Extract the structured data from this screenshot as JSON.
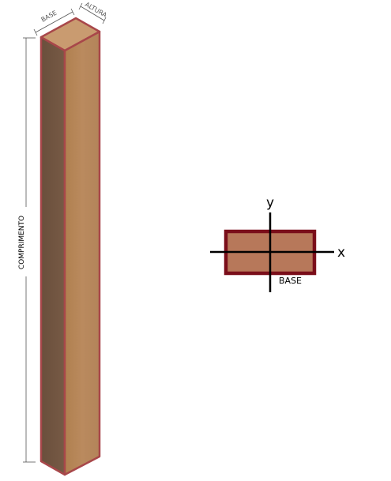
{
  "beam": {
    "base_label": "BASE",
    "altura_label": "ALTURA",
    "comprimento_label": "COMPRIMENTO"
  },
  "section": {
    "y_label": "y",
    "x_label": "x",
    "base_label": "BASE"
  },
  "colors": {
    "outline": "#7a0e1a",
    "beam_edge": "#a8474a",
    "front_face": "#b88559",
    "side_face": "#6f5340",
    "top_face": "#c89a6e",
    "section_fill": "#b7785a",
    "dimension_line": "#555555"
  }
}
